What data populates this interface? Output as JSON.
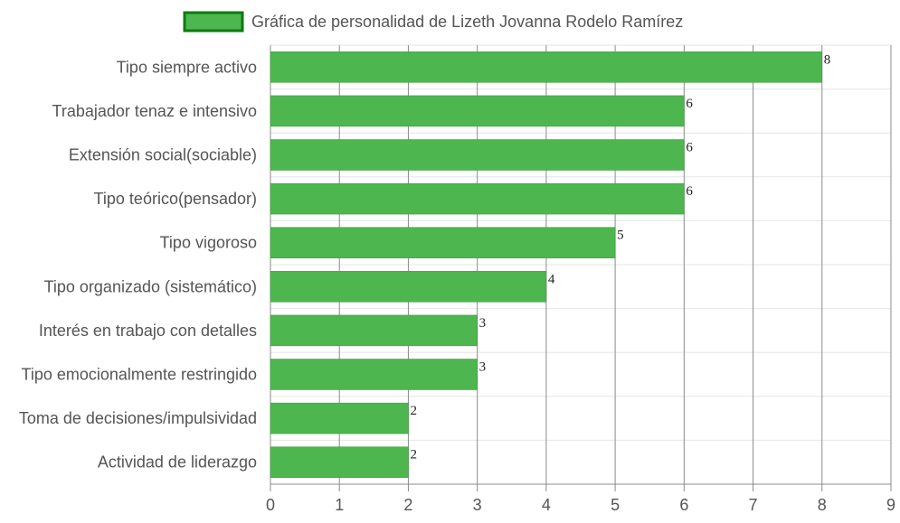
{
  "chart_data": {
    "type": "bar",
    "orientation": "horizontal",
    "title": "",
    "categories": [
      "Tipo siempre activo",
      "Trabajador tenaz e intensivo",
      "Extensión social(sociable)",
      "Tipo teórico(pensador)",
      "Tipo vigoroso",
      "Tipo organizado (sistemático)",
      "Interés en trabajo con detalles",
      "Tipo emocionalmente restringido",
      "Toma de decisiones/impulsividad",
      "Actividad de liderazgo"
    ],
    "series": [
      {
        "name": "Gráfica de personalidad de Lizeth Jovanna Rodelo Ramírez",
        "values": [
          8,
          6,
          6,
          6,
          5,
          4,
          3,
          3,
          2,
          2
        ]
      }
    ],
    "data_labels": [
      "8",
      "6",
      "6",
      "6",
      "5",
      "4",
      "3",
      "3",
      "2",
      "2"
    ],
    "xlabel": "",
    "ylabel": "",
    "xlim": [
      0,
      9
    ],
    "x_ticks": [
      "0",
      "1",
      "2",
      "3",
      "4",
      "5",
      "6",
      "7",
      "8",
      "9"
    ],
    "grid": true,
    "legend_position": "top",
    "colors": {
      "bar_fill": "#4db64f",
      "legend_fill": "#4db64f",
      "legend_border": "#0d7a12",
      "gridline_vertical": "#8c8c8c",
      "gridline_horizontal": "#e6e6e6",
      "text": "#555555"
    }
  }
}
